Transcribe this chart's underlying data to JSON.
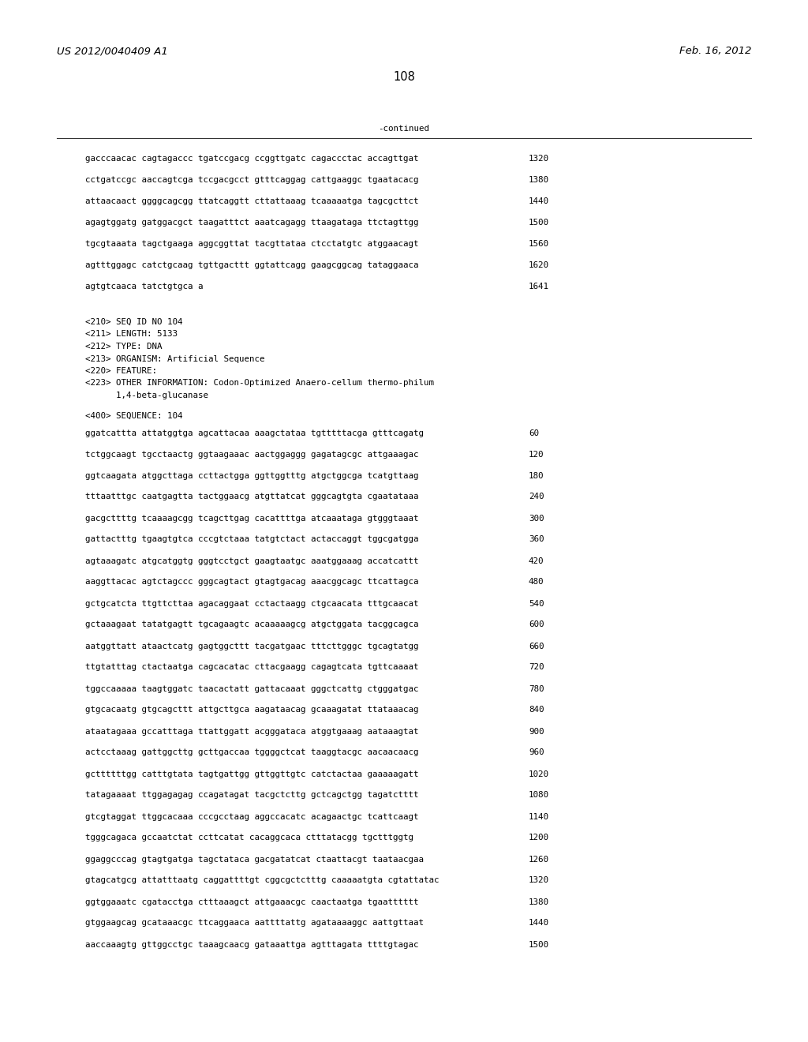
{
  "header_left": "US 2012/0040409 A1",
  "header_right": "Feb. 16, 2012",
  "page_number": "108",
  "continued_label": "-continued",
  "background_color": "#ffffff",
  "text_color": "#000000",
  "font_size_header": 9.5,
  "font_size_body": 7.8,
  "font_size_page": 10.5,
  "sequence_lines_top": [
    [
      "gacccaacac cagtagaccc tgatccgacg ccggttgatc cagaccctac accagttgat",
      "1320"
    ],
    [
      "cctgatccgc aaccagtcga tccgacgcct gtttcaggag cattgaaggc tgaatacacg",
      "1380"
    ],
    [
      "attaacaact ggggcagcgg ttatcaggtt cttattaaag tcaaaaatga tagcgcttct",
      "1440"
    ],
    [
      "agagtggatg gatggacgct taagatttct aaatcagagg ttaagataga ttctagttgg",
      "1500"
    ],
    [
      "tgcgtaaata tagctgaaga aggcggttat tacgttataa ctcctatgtc atggaacagt",
      "1560"
    ],
    [
      "agtttggagc catctgcaag tgttgacttt ggtattcagg gaagcggcag tataggaaca",
      "1620"
    ],
    [
      "agtgtcaaca tatctgtgca a",
      "1641"
    ]
  ],
  "metadata_lines": [
    "<210> SEQ ID NO 104",
    "<211> LENGTH: 5133",
    "<212> TYPE: DNA",
    "<213> ORGANISM: Artificial Sequence",
    "<220> FEATURE:",
    "<223> OTHER INFORMATION: Codon-Optimized Anaero-cellum thermo-philum",
    "      1,4-beta-glucanase"
  ],
  "sequence_label": "<400> SEQUENCE: 104",
  "sequence_lines_bottom": [
    [
      "ggatcattta attatggtga agcattacaa aaagctataa tgtttttacga gtttcagatg",
      "60"
    ],
    [
      "tctggcaagt tgcctaactg ggtaagaaac aactggaggg gagatagcgc attgaaagac",
      "120"
    ],
    [
      "ggtcaagata atggcttaga ccttactgga ggttggtttg atgctggcga tcatgttaag",
      "180"
    ],
    [
      "tttaatttgc caatgagtta tactggaacg atgttatcat gggcagtgta cgaatataaa",
      "240"
    ],
    [
      "gacgcttttg tcaaaagcgg tcagcttgag cacattttga atcaaataga gtgggtaaat",
      "300"
    ],
    [
      "gattactttg tgaagtgtca cccgtctaaa tatgtctact actaccaggt tggcgatgga",
      "360"
    ],
    [
      "agtaaagatc atgcatggtg gggtcctgct gaagtaatgc aaatggaaag accatcattt",
      "420"
    ],
    [
      "aaggttacac agtctagccc gggcagtact gtagtgacag aaacggcagc ttcattagca",
      "480"
    ],
    [
      "gctgcatcta ttgttcttaa agacaggaat cctactaagg ctgcaacata tttgcaacat",
      "540"
    ],
    [
      "gctaaagaat tatatgagtt tgcagaagtc acaaaaagcg atgctggata tacggcagca",
      "600"
    ],
    [
      "aatggttatt ataactcatg gagtggcttt tacgatgaac tttcttgggc tgcagtatgg",
      "660"
    ],
    [
      "ttgtatttag ctactaatga cagcacatac cttacgaagg cagagtcata tgttcaaaat",
      "720"
    ],
    [
      "tggccaaaaa taagtggatc taacactatt gattacaaat gggctcattg ctgggatgac",
      "780"
    ],
    [
      "gtgcacaatg gtgcagcttt attgcttgca aagataacag gcaaagatat ttataaacag",
      "840"
    ],
    [
      "ataatagaaa gccatttaga ttattggatt acgggataca atggtgaaag aataaagtat",
      "900"
    ],
    [
      "actcctaaag gattggcttg gcttgaccaa tggggctcat taaggtacgc aacaacaacg",
      "960"
    ],
    [
      "gcttttttgg catttgtata tagtgattgg gttggttgtc catctactaa gaaaaagatt",
      "1020"
    ],
    [
      "tatagaaaat ttggagagag ccagatagat tacgctcttg gctcagctgg tagatctttt",
      "1080"
    ],
    [
      "gtcgtaggat ttggcacaaa cccgcctaag aggccacatc acagaactgc tcattcaagt",
      "1140"
    ],
    [
      "tgggcagaca gccaatctat ccttcatat cacaggcaca ctttatacgg tgctttggtg",
      "1200"
    ],
    [
      "ggaggcccag gtagtgatga tagctataca gacgatatcat ctaattacgt taataacgaa",
      "1260"
    ],
    [
      "gtagcatgcg attatttaatg caggattttgt cggcgctctttg caaaaatgta cgtattatac",
      "1320"
    ],
    [
      "ggtggaaatc cgatacctga ctttaaagct attgaaacgc caactaatga tgaatttttt",
      "1380"
    ],
    [
      "gtggaagcag gcataaacgc ttcaggaaca aattttattg agataaaaggc aattgttaat",
      "1440"
    ],
    [
      "aaccaaagtg gttggcctgc taaagcaacg gataaattga agtttagata ttttgtagac",
      "1500"
    ]
  ]
}
